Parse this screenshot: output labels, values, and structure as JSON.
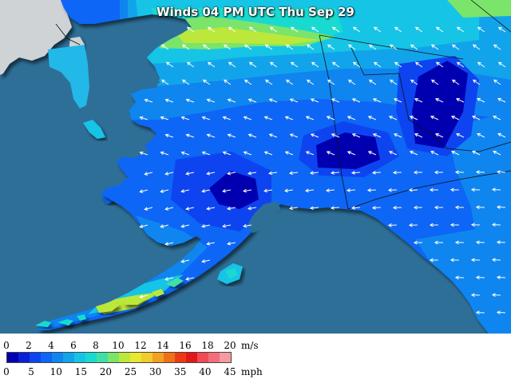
{
  "map": {
    "title": "Winds 04 PM UTC Thu Sep 29",
    "region": "Alaska"
  },
  "legend": {
    "ms_unit": "m/s",
    "mph_unit": "mph",
    "ms_ticks": [
      "0",
      "2",
      "4",
      "6",
      "8",
      "10",
      "12",
      "14",
      "16",
      "18",
      "20"
    ],
    "mph_ticks": [
      "0",
      "5",
      "10",
      "15",
      "20",
      "25",
      "30",
      "35",
      "40",
      "45"
    ],
    "swatch_colors": [
      "#0000b0",
      "#0a1fd6",
      "#0d44f0",
      "#0d66f5",
      "#0f85f0",
      "#12a4eb",
      "#16c4e6",
      "#19dad0",
      "#3fe0a6",
      "#7ae46b",
      "#bbe83a",
      "#e8e830",
      "#f0cc2a",
      "#f2a022",
      "#f07018",
      "#ee3a14",
      "#e01818",
      "#f04a52",
      "#f26e7a",
      "#f49aa2"
    ]
  },
  "colors": {
    "ocean": "#2e6f98",
    "land_gray": "#cfd3d6",
    "wind_arrow": "#ffffff"
  }
}
